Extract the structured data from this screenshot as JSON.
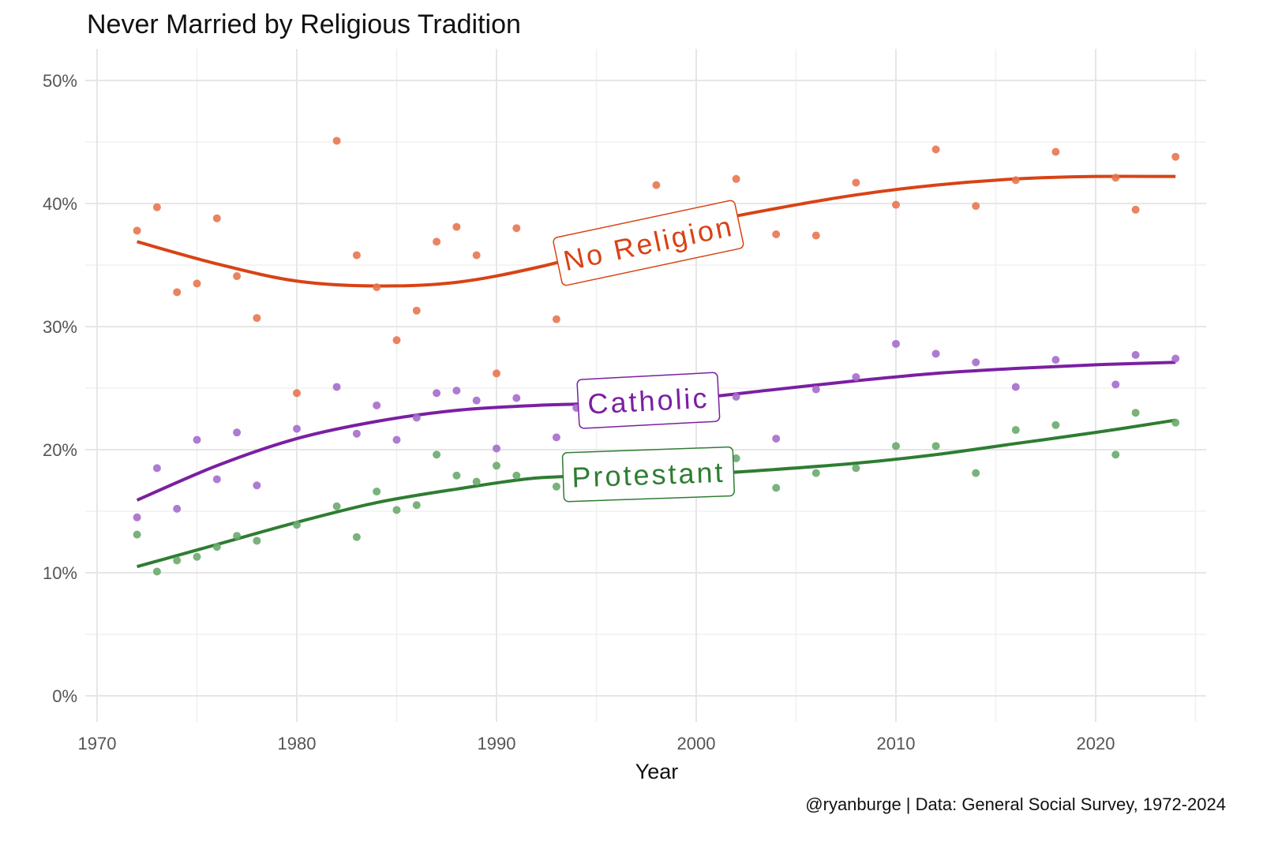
{
  "chart_data": {
    "type": "scatter",
    "title": "Never Married by Religious Tradition",
    "xlabel": "Year",
    "ylabel": "",
    "caption": "@ryanburge | Data: General Social Survey, 1972-2024",
    "xlim": [
      1968,
      2026
    ],
    "ylim": [
      -2.5,
      52.5
    ],
    "xticks": [
      1970,
      1980,
      1990,
      2000,
      2010,
      2020
    ],
    "xtick_labels": [
      "1970",
      "1980",
      "1990",
      "2000",
      "2010",
      "2020"
    ],
    "yticks": [
      0,
      10,
      20,
      30,
      40,
      50
    ],
    "ytick_labels": [
      "0%",
      "10%",
      "20%",
      "30%",
      "40%",
      "50%"
    ],
    "grid": true,
    "legend": "direct labels on lines",
    "series": [
      {
        "name": "No Religion",
        "color": "#d84315",
        "point_color": "#e8754f",
        "x": [
          1972,
          1973,
          1974,
          1975,
          1976,
          1977,
          1978,
          1980,
          1982,
          1983,
          1984,
          1985,
          1986,
          1987,
          1988,
          1989,
          1990,
          1991,
          1993,
          1994,
          1998,
          2002,
          2004,
          2006,
          2008,
          2010,
          2012,
          2014,
          2016,
          2018,
          2021,
          2022,
          2024
        ],
        "y": [
          37.8,
          39.7,
          32.8,
          33.5,
          38.8,
          34.1,
          30.7,
          24.6,
          45.1,
          35.8,
          33.2,
          28.9,
          31.3,
          36.9,
          38.1,
          35.8,
          26.2,
          38.0,
          30.6,
          33.8,
          41.5,
          42.0,
          37.5,
          37.4,
          41.7,
          39.9,
          44.4,
          39.8,
          41.9,
          44.2,
          42.1,
          39.5,
          43.8
        ],
        "trend_x": [
          1972,
          1976,
          1980,
          1984,
          1988,
          1992,
          1996,
          2000,
          2004,
          2008,
          2012,
          2016,
          2020,
          2024
        ],
        "trend_y": [
          36.9,
          35.1,
          33.7,
          33.3,
          33.6,
          34.8,
          36.5,
          38.3,
          39.6,
          40.7,
          41.5,
          42.0,
          42.2,
          42.2
        ],
        "label_year": 1998,
        "label_value": 36.8,
        "label_angle": -12
      },
      {
        "name": "Catholic",
        "color": "#7b1fa2",
        "point_color": "#a66bcc",
        "x": [
          1972,
          1973,
          1974,
          1975,
          1976,
          1977,
          1978,
          1980,
          1982,
          1983,
          1984,
          1985,
          1986,
          1987,
          1988,
          1989,
          1990,
          1991,
          1993,
          1994,
          2002,
          2004,
          2006,
          2008,
          2010,
          2012,
          2014,
          2016,
          2018,
          2021,
          2022,
          2024
        ],
        "y": [
          14.5,
          18.5,
          15.2,
          20.8,
          17.6,
          21.4,
          17.1,
          21.7,
          25.1,
          21.3,
          23.6,
          20.8,
          22.6,
          24.6,
          24.8,
          24.0,
          20.1,
          24.2,
          21.0,
          23.4,
          24.3,
          20.9,
          24.9,
          25.9,
          28.6,
          27.8,
          27.1,
          25.1,
          27.3,
          25.3,
          27.7,
          27.4
        ],
        "trend_x": [
          1972,
          1976,
          1980,
          1984,
          1988,
          1992,
          1996,
          2000,
          2004,
          2008,
          2012,
          2016,
          2020,
          2024
        ],
        "trend_y": [
          15.9,
          18.7,
          20.9,
          22.3,
          23.2,
          23.6,
          23.8,
          24.2,
          24.9,
          25.6,
          26.2,
          26.6,
          26.9,
          27.1
        ],
        "label_year": 1998,
        "label_value": 24.0,
        "label_angle": -3
      },
      {
        "name": "Protestant",
        "color": "#2e7d32",
        "point_color": "#6aaa6d",
        "x": [
          1972,
          1973,
          1974,
          1975,
          1976,
          1977,
          1978,
          1980,
          1982,
          1983,
          1984,
          1985,
          1986,
          1987,
          1988,
          1989,
          1990,
          1991,
          1993,
          1994,
          2002,
          2004,
          2006,
          2008,
          2010,
          2012,
          2014,
          2016,
          2018,
          2021,
          2022,
          2024
        ],
        "y": [
          13.1,
          10.1,
          11.0,
          11.3,
          12.1,
          13.0,
          12.6,
          13.9,
          15.4,
          12.9,
          16.6,
          15.1,
          15.5,
          19.6,
          17.9,
          17.4,
          18.7,
          17.9,
          17.0,
          16.1,
          19.3,
          16.9,
          18.1,
          18.5,
          20.3,
          20.3,
          18.1,
          21.6,
          22.0,
          19.6,
          23.0,
          22.2
        ],
        "trend_x": [
          1972,
          1976,
          1980,
          1984,
          1988,
          1992,
          1996,
          2000,
          2004,
          2008,
          2012,
          2016,
          2020,
          2024
        ],
        "trend_y": [
          10.5,
          12.3,
          14.1,
          15.7,
          16.8,
          17.7,
          17.9,
          18.0,
          18.4,
          18.9,
          19.6,
          20.5,
          21.4,
          22.4
        ],
        "label_year": 1998,
        "label_value": 18.0,
        "label_angle": -2
      }
    ]
  }
}
